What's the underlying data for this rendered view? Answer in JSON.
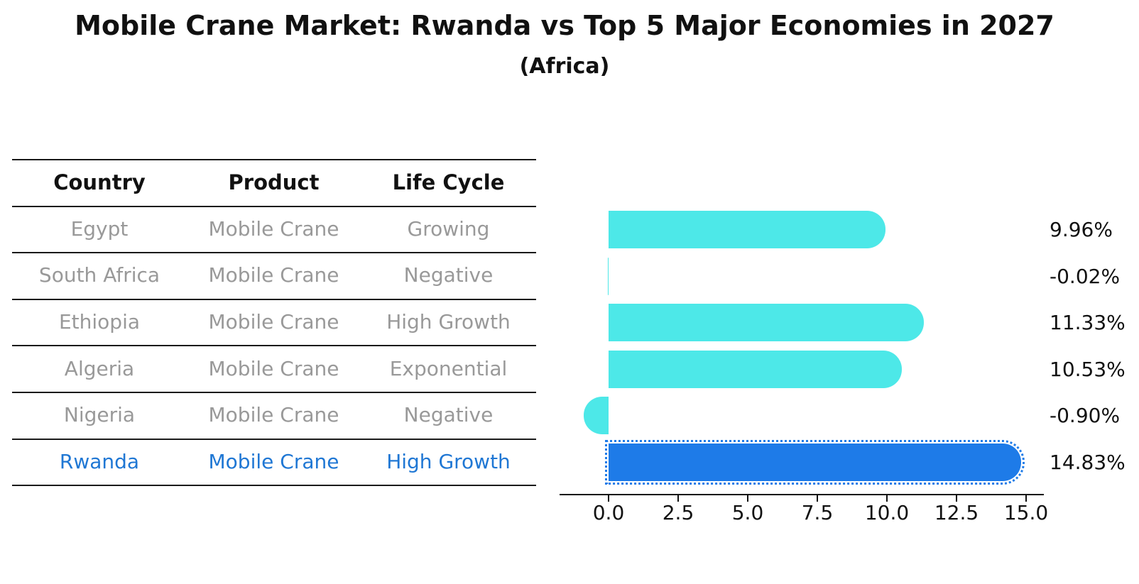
{
  "title": "Mobile Crane Market: Rwanda vs Top 5 Major Economies in 2027",
  "subtitle": "(Africa)",
  "table": {
    "headers": [
      "Country",
      "Product",
      "Life Cycle"
    ],
    "rows": [
      {
        "country": "Egypt",
        "product": "Mobile Crane",
        "life_cycle": "Growing",
        "highlighted": false
      },
      {
        "country": "South Africa",
        "product": "Mobile Crane",
        "life_cycle": "Negative",
        "highlighted": false
      },
      {
        "country": "Ethiopia",
        "product": "Mobile Crane",
        "life_cycle": "High Growth",
        "highlighted": false
      },
      {
        "country": "Algeria",
        "product": "Mobile Crane",
        "life_cycle": "Exponential",
        "highlighted": false
      },
      {
        "country": "Nigeria",
        "product": "Mobile Crane",
        "life_cycle": "Negative",
        "highlighted": false
      },
      {
        "country": "Rwanda",
        "product": "Mobile Crane",
        "life_cycle": "High Growth",
        "highlighted": true
      }
    ]
  },
  "chart_data": {
    "type": "bar",
    "orientation": "horizontal",
    "title": "Mobile Crane Market: Rwanda vs Top 5 Major Economies in 2027",
    "subtitle": "(Africa)",
    "categories": [
      "Egypt",
      "South Africa",
      "Ethiopia",
      "Algeria",
      "Nigeria",
      "Rwanda"
    ],
    "values": [
      9.96,
      -0.02,
      11.33,
      10.53,
      -0.9,
      14.83
    ],
    "value_labels": [
      "9.96%",
      "-0.02%",
      "11.33%",
      "10.53%",
      "-0.90%",
      "14.83%"
    ],
    "x_ticks": [
      0.0,
      2.5,
      5.0,
      7.5,
      10.0,
      12.5,
      15.0
    ],
    "x_tick_labels": [
      "0.0",
      "2.5",
      "5.0",
      "7.5",
      "10.0",
      "12.5",
      "15.0"
    ],
    "xlim": [
      -1.76,
      15.64
    ],
    "grid": false,
    "legend": null,
    "highlight_index": 5,
    "bar_color": "#4de8e8",
    "highlight_color": "#1e7be8"
  },
  "colors": {
    "background": "#ffffff",
    "text": "#111111",
    "muted_text": "#999999",
    "highlight_text": "#1f77d4",
    "bar": "#4de8e8",
    "highlight_bar": "#1e7be8",
    "line": "#1a1a1a"
  }
}
